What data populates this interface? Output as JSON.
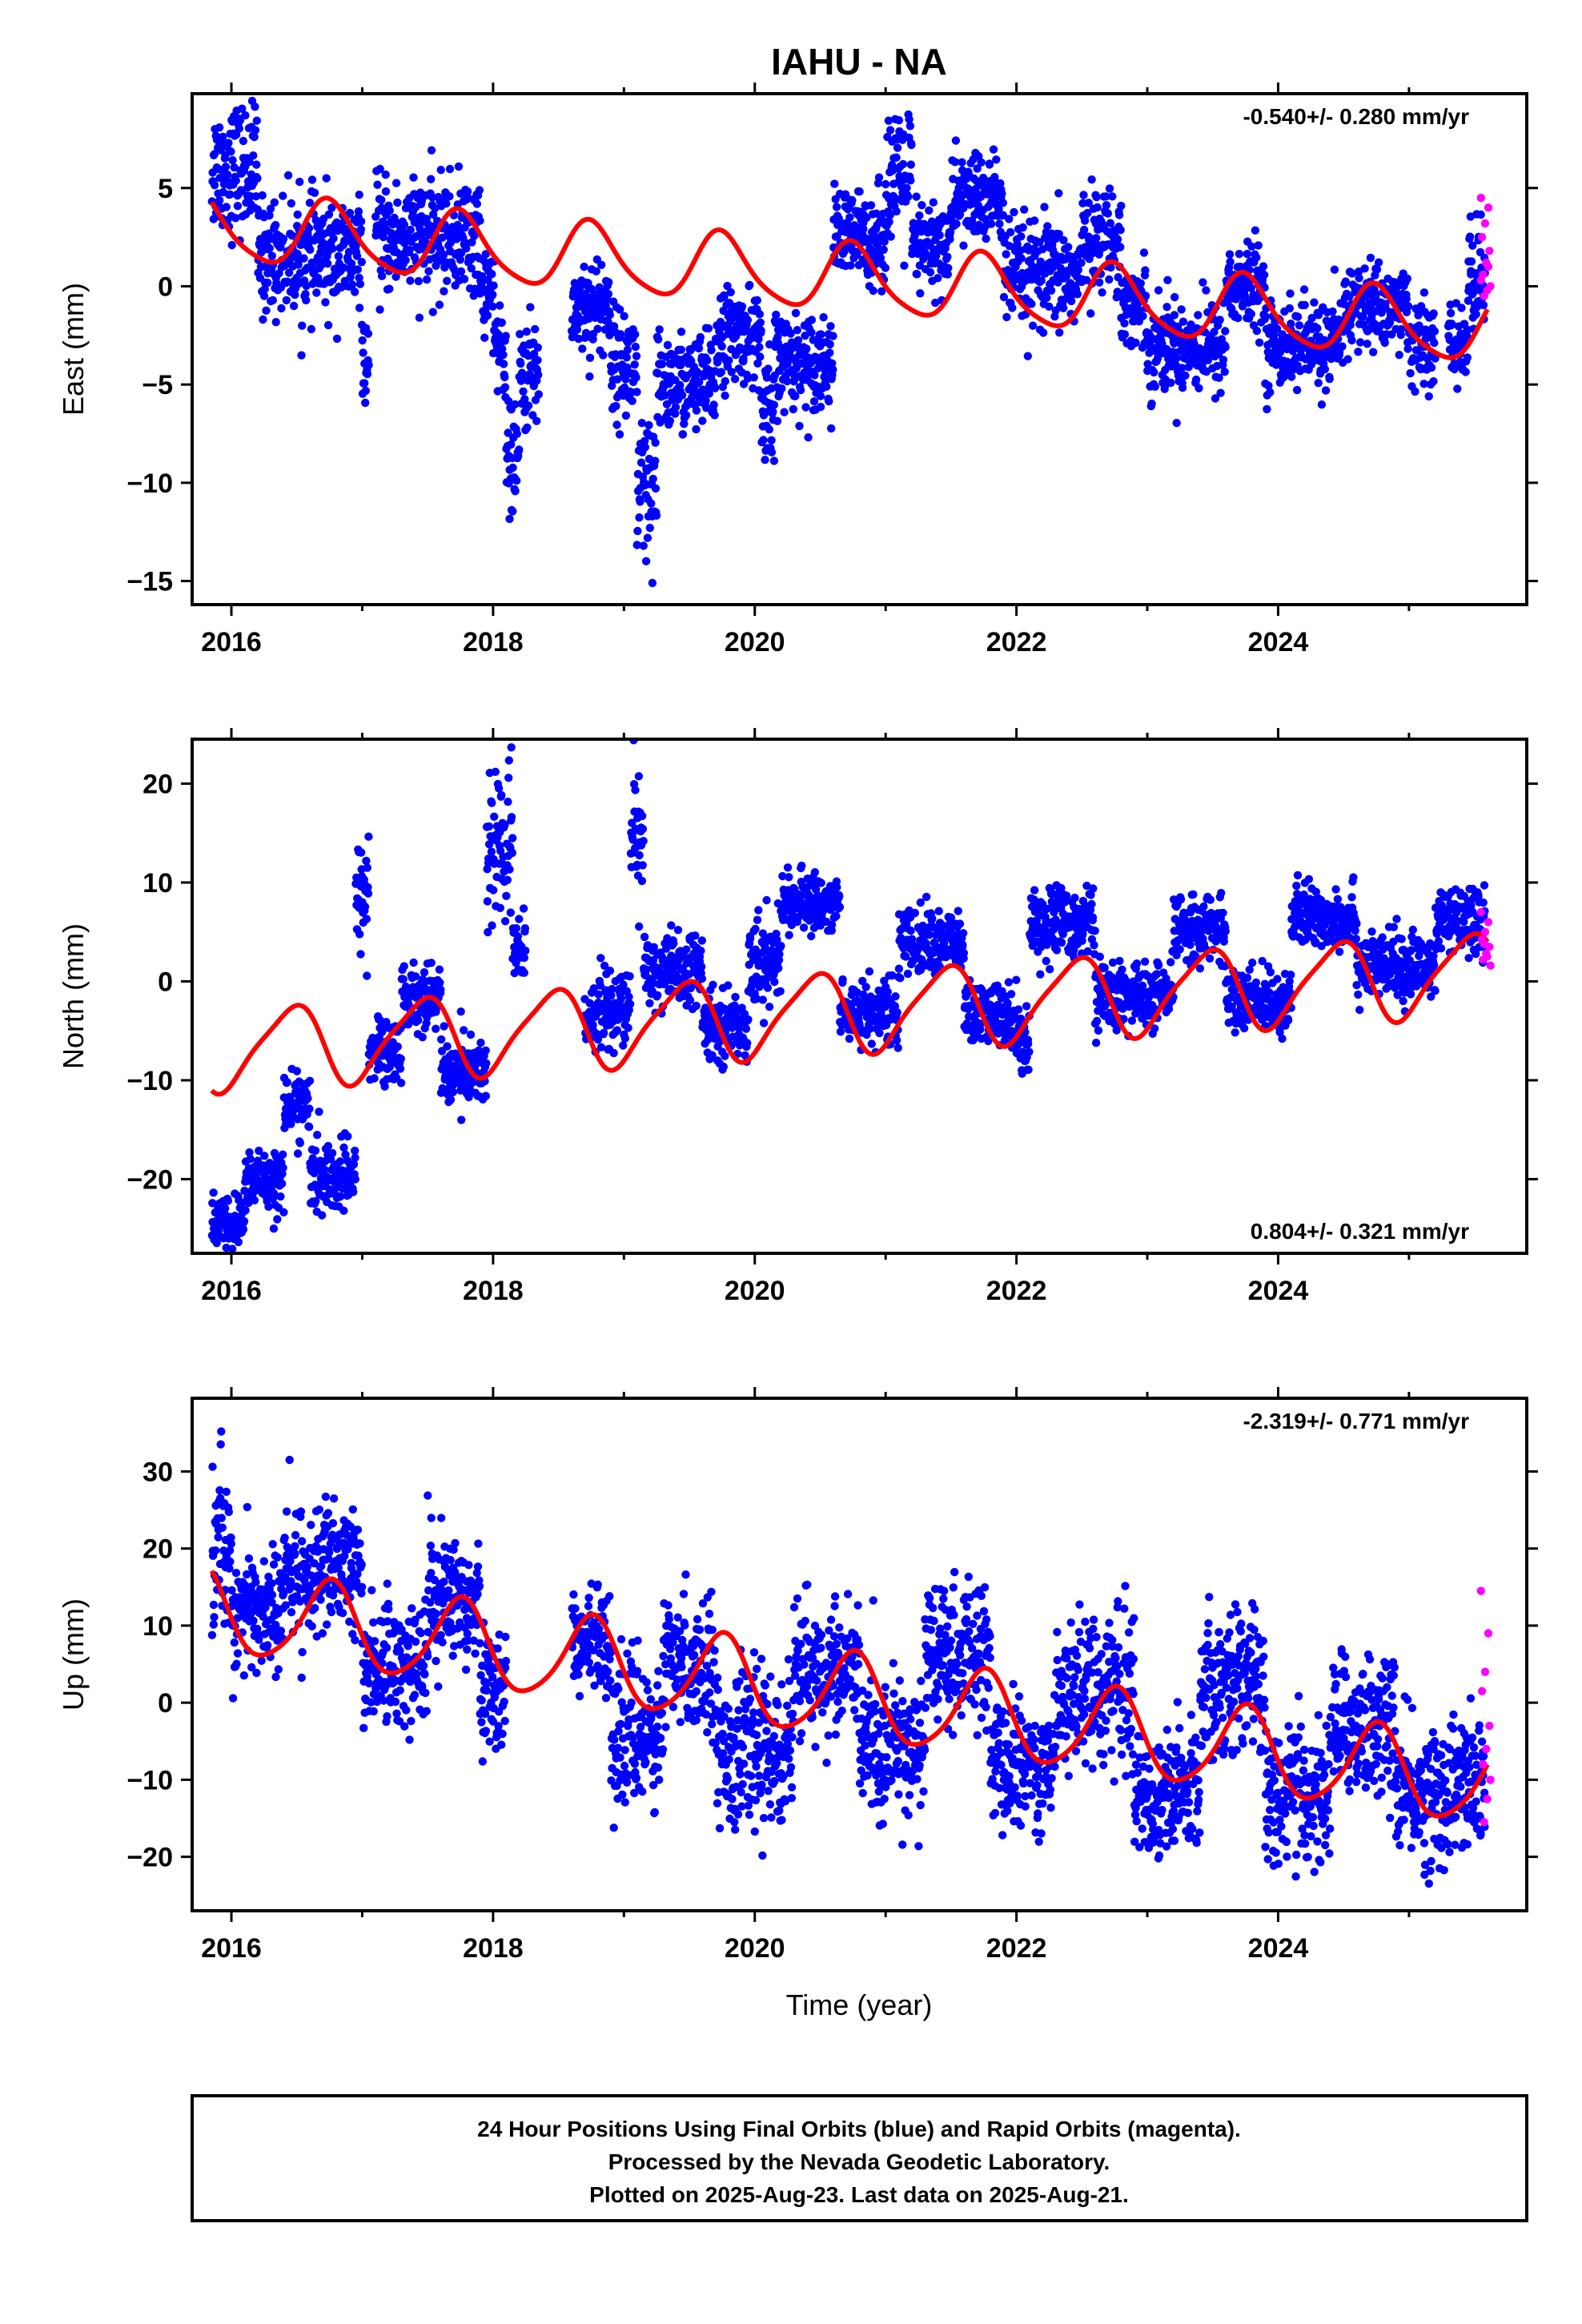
{
  "title": "IAHU - NA",
  "xlabel": "Time (year)",
  "footer": [
    "24 Hour Positions Using Final Orbits (blue) and Rapid Orbits (magenta).",
    "Processed by the Nevada Geodetic Laboratory.",
    "Plotted on 2025-Aug-23. Last data on 2025-Aug-21."
  ],
  "colors": {
    "final": "#0000ff",
    "rapid": "#ff00ff",
    "model": "#ff0000",
    "frame": "#000000"
  },
  "chart_data": [
    {
      "type": "scatter",
      "ylabel": "East (mm)",
      "rate_text": "-0.540+/- 0.280 mm/yr",
      "rate_position": "top-right",
      "xlim": [
        2015.7,
        2025.9
      ],
      "ylim": [
        -16.2,
        9.8
      ],
      "xticks": [
        2016,
        2018,
        2020,
        2022,
        2024
      ],
      "yticks": [
        -15,
        -10,
        -5,
        0,
        5
      ],
      "model": {
        "intercept": 3.0,
        "rate": -0.54,
        "start": 2015.85,
        "annual_amp": 1.7,
        "annual_phase": 0.75,
        "semi_amp": 0.3,
        "semi_phase": 0.2,
        "offsets": []
      },
      "final_series": [
        [
          2015.85,
          2016.2,
          6.0,
          1.8
        ],
        [
          2016.2,
          2017.0,
          1.5,
          1.6
        ],
        [
          2017.0,
          2017.05,
          -4.0,
          1.0
        ],
        [
          2017.1,
          2017.9,
          2.5,
          1.6
        ],
        [
          2017.9,
          2018.0,
          0.0,
          1.2
        ],
        [
          2018.0,
          2018.1,
          -3.0,
          1.5
        ],
        [
          2018.1,
          2018.2,
          -9.0,
          1.5
        ],
        [
          2018.2,
          2018.35,
          -4.5,
          1.5
        ],
        [
          2018.6,
          2018.9,
          -1.0,
          1.4
        ],
        [
          2018.9,
          2019.1,
          -4.0,
          1.5
        ],
        [
          2019.1,
          2019.25,
          -11.0,
          2.5
        ],
        [
          2019.25,
          2019.7,
          -5.0,
          1.4
        ],
        [
          2019.7,
          2020.05,
          -2.5,
          1.3
        ],
        [
          2020.05,
          2020.15,
          -7.0,
          2.0
        ],
        [
          2020.15,
          2020.6,
          -3.8,
          1.3
        ],
        [
          2020.6,
          2021.0,
          2.5,
          1.3
        ],
        [
          2021.0,
          2021.2,
          5.5,
          2.0
        ],
        [
          2021.2,
          2021.5,
          2.0,
          1.3
        ],
        [
          2021.5,
          2021.9,
          4.5,
          1.3
        ],
        [
          2021.9,
          2022.5,
          0.5,
          1.5
        ],
        [
          2022.5,
          2022.8,
          2.5,
          1.3
        ],
        [
          2022.8,
          2023.0,
          -1.0,
          1.2
        ],
        [
          2023.0,
          2023.6,
          -3.0,
          1.3
        ],
        [
          2023.6,
          2023.9,
          0.0,
          1.2
        ],
        [
          2023.9,
          2024.5,
          -3.0,
          1.2
        ],
        [
          2024.5,
          2025.0,
          -1.0,
          1.2
        ],
        [
          2025.0,
          2025.2,
          -3.0,
          1.2
        ],
        [
          2025.3,
          2025.45,
          -3.0,
          1.0
        ],
        [
          2025.45,
          2025.58,
          0.5,
          1.6
        ]
      ],
      "rapid_values": [
        4.5,
        4.0,
        3.2,
        2.5,
        1.8,
        1.2,
        0.6,
        0.0,
        -0.2,
        -0.5,
        0.3,
        1.0
      ],
      "rapid_x": [
        2025.55,
        2025.63
      ]
    },
    {
      "type": "scatter",
      "ylabel": "North (mm)",
      "rate_text": "0.804+/- 0.321 mm/yr",
      "rate_position": "bottom-right",
      "xlim": [
        2015.7,
        2025.9
      ],
      "ylim": [
        -27.5,
        24.5
      ],
      "xticks": [
        2016,
        2018,
        2020,
        2022,
        2024
      ],
      "yticks": [
        -20,
        -10,
        0,
        10,
        20
      ],
      "model": {
        "intercept": -7.0,
        "rate": 0.804,
        "start": 2015.85,
        "annual_amp": 4.0,
        "annual_phase": 0.45,
        "semi_amp": 0.8,
        "semi_phase": 0.1,
        "offsets": []
      },
      "final_series": [
        [
          2015.85,
          2016.1,
          -24.5,
          1.5
        ],
        [
          2016.1,
          2016.4,
          -20.0,
          1.8
        ],
        [
          2016.4,
          2016.6,
          -12.5,
          1.8
        ],
        [
          2016.6,
          2016.95,
          -20.0,
          2.0
        ],
        [
          2016.95,
          2017.05,
          9.0,
          3.0
        ],
        [
          2017.05,
          2017.3,
          -7.0,
          2.0
        ],
        [
          2017.3,
          2017.6,
          -1.5,
          1.8
        ],
        [
          2017.6,
          2017.95,
          -9.0,
          2.0
        ],
        [
          2017.95,
          2018.15,
          13.0,
          6.0
        ],
        [
          2018.15,
          2018.25,
          3.0,
          2.0
        ],
        [
          2018.7,
          2019.05,
          -3.0,
          2.0
        ],
        [
          2019.05,
          2019.15,
          15.0,
          5.0
        ],
        [
          2019.15,
          2019.6,
          1.0,
          2.0
        ],
        [
          2019.6,
          2019.95,
          -4.5,
          1.8
        ],
        [
          2019.95,
          2020.2,
          2.0,
          2.5
        ],
        [
          2020.2,
          2020.65,
          8.0,
          1.5
        ],
        [
          2020.65,
          2021.1,
          -3.0,
          1.8
        ],
        [
          2021.1,
          2021.6,
          4.0,
          1.8
        ],
        [
          2021.6,
          2022.0,
          -3.5,
          1.8
        ],
        [
          2022.0,
          2022.1,
          -6.0,
          2.0
        ],
        [
          2022.1,
          2022.6,
          6.0,
          2.0
        ],
        [
          2022.6,
          2023.2,
          -1.5,
          1.8
        ],
        [
          2023.2,
          2023.6,
          5.5,
          1.8
        ],
        [
          2023.6,
          2024.1,
          -2.0,
          1.8
        ],
        [
          2024.1,
          2024.6,
          6.5,
          1.8
        ],
        [
          2024.6,
          2025.2,
          1.5,
          1.8
        ],
        [
          2025.2,
          2025.58,
          6.0,
          1.8
        ]
      ],
      "rapid_values": [
        7.0,
        6.0,
        5.0,
        4.2,
        3.5,
        2.8,
        2.2,
        1.6,
        2.5,
        3.8
      ],
      "rapid_x": [
        2025.55,
        2025.63
      ]
    },
    {
      "type": "scatter",
      "ylabel": "Up (mm)",
      "rate_text": "-2.319+/- 0.771 mm/yr",
      "rate_position": "top-right",
      "xlim": [
        2015.7,
        2025.9
      ],
      "ylim": [
        -27.0,
        39.5
      ],
      "xticks": [
        2016,
        2018,
        2020,
        2022,
        2024
      ],
      "yticks": [
        -20,
        -10,
        0,
        10,
        20,
        30
      ],
      "model": {
        "intercept": 12.0,
        "rate": -2.319,
        "start": 2015.85,
        "annual_amp": 5.5,
        "annual_phase": 0.75,
        "semi_amp": 0.8,
        "semi_phase": 0.3,
        "offsets": []
      },
      "final_series": [
        [
          2015.85,
          2016.0,
          20.0,
          6.0
        ],
        [
          2016.0,
          2016.4,
          12.0,
          4.5
        ],
        [
          2016.4,
          2017.0,
          17.0,
          4.5
        ],
        [
          2017.0,
          2017.5,
          5.0,
          4.5
        ],
        [
          2017.5,
          2017.9,
          14.0,
          4.5
        ],
        [
          2017.9,
          2018.1,
          2.0,
          4.5
        ],
        [
          2018.6,
          2018.9,
          8.0,
          3.5
        ],
        [
          2018.9,
          2019.3,
          -4.0,
          5.0
        ],
        [
          2019.3,
          2019.7,
          5.0,
          4.5
        ],
        [
          2019.7,
          2020.3,
          -6.0,
          5.5
        ],
        [
          2020.3,
          2020.8,
          4.0,
          4.5
        ],
        [
          2020.8,
          2021.3,
          -6.0,
          5.0
        ],
        [
          2021.3,
          2021.8,
          6.0,
          5.0
        ],
        [
          2021.8,
          2022.3,
          -8.0,
          4.5
        ],
        [
          2022.3,
          2022.9,
          2.0,
          5.0
        ],
        [
          2022.9,
          2023.4,
          -12.0,
          5.0
        ],
        [
          2023.4,
          2023.9,
          3.0,
          5.0
        ],
        [
          2023.9,
          2024.4,
          -12.0,
          5.0
        ],
        [
          2024.4,
          2024.9,
          -3.0,
          5.0
        ],
        [
          2024.9,
          2025.3,
          -12.0,
          5.0
        ],
        [
          2025.3,
          2025.58,
          -11.0,
          5.0
        ]
      ],
      "rapid_values": [
        14.5,
        9.0,
        4.0,
        1.5,
        -3.0,
        -6.0,
        -8.0,
        -10.0,
        -12.5,
        -15.5
      ],
      "rapid_x": [
        2025.55,
        2025.63
      ]
    }
  ]
}
